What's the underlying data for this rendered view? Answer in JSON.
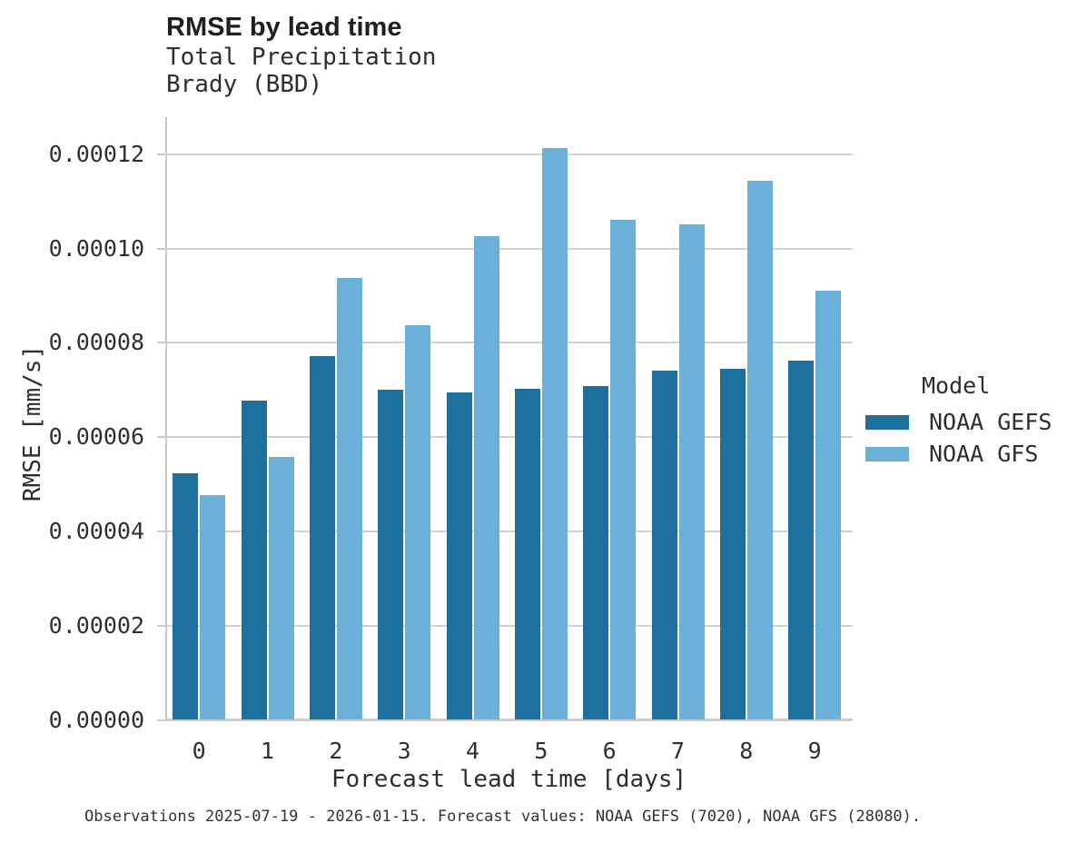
{
  "header": {
    "title": "RMSE by lead time",
    "subtitle_line1": "Total Precipitation",
    "subtitle_line2": "Brady (BBD)"
  },
  "chart_data": {
    "type": "bar",
    "title": "RMSE by lead time",
    "subtitle": [
      "Total Precipitation",
      "Brady (BBD)"
    ],
    "xlabel": "Forecast lead time [days]",
    "ylabel": "RMSE [mm/s]",
    "categories": [
      "0",
      "1",
      "2",
      "3",
      "4",
      "5",
      "6",
      "7",
      "8",
      "9"
    ],
    "series": [
      {
        "name": "NOAA GEFS",
        "color": "#1d6f9e",
        "values": [
          5.24e-05,
          6.77e-05,
          7.72e-05,
          7.01e-05,
          6.94e-05,
          7.02e-05,
          7.09e-05,
          7.41e-05,
          7.45e-05,
          7.62e-05
        ]
      },
      {
        "name": "NOAA GFS",
        "color": "#6bb0d9",
        "values": [
          4.77e-05,
          5.57e-05,
          9.38e-05,
          8.37e-05,
          0.0001026,
          0.0001213,
          0.000106,
          0.0001051,
          0.0001143,
          9.1e-05
        ]
      }
    ],
    "ylim": [
      0,
      0.000128
    ],
    "yticks": [
      0.0,
      2e-05,
      4e-05,
      6e-05,
      8e-05,
      0.0001,
      0.00012
    ],
    "ytick_labels": [
      "0.00000",
      "0.00002",
      "0.00004",
      "0.00006",
      "0.00008",
      "0.00010",
      "0.00012"
    ],
    "grid": true,
    "legend_title": "Model",
    "legend_position": "right"
  },
  "footer": {
    "note": "Observations 2025-07-19 - 2026-01-15. Forecast values: NOAA GEFS (7020), NOAA GFS (28080)."
  }
}
